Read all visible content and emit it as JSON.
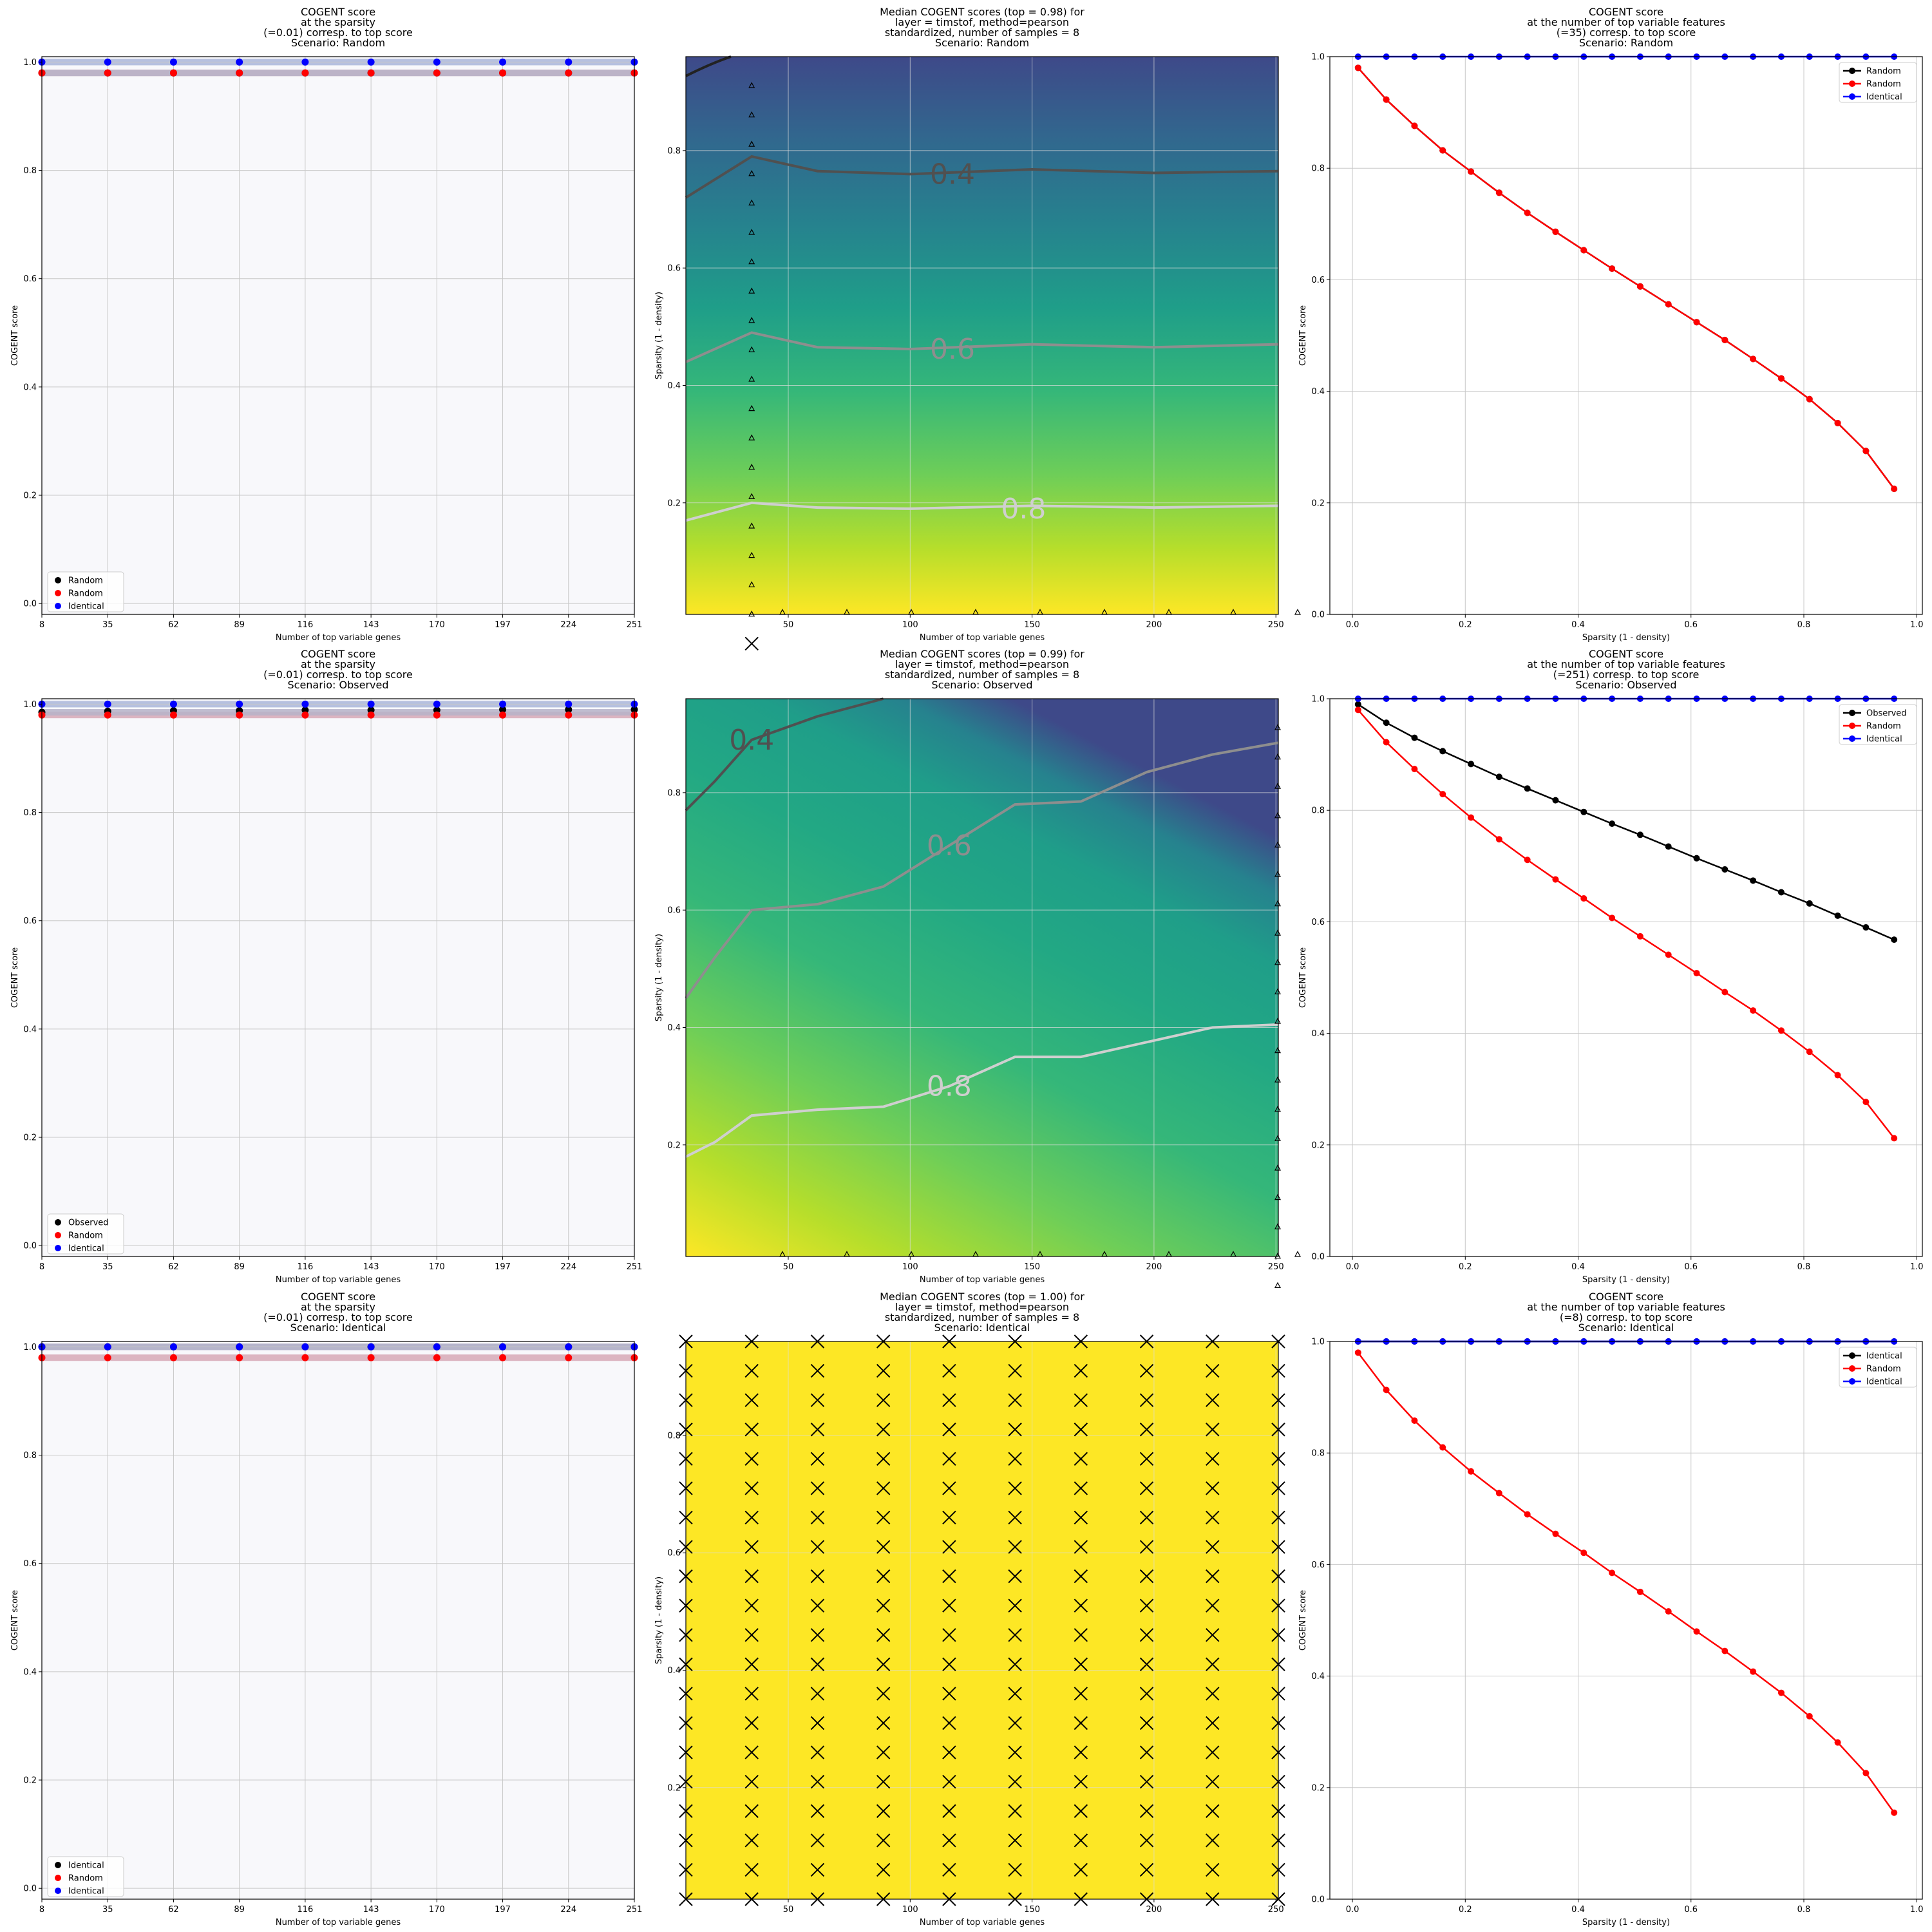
{
  "chart_data": [
    {
      "type": "scatter",
      "title": [
        "COGENT score",
        "at the sparsity",
        "(=0.01) corresp. to top score",
        "Scenario: Random"
      ],
      "xlabel": "Number of top variable genes",
      "ylabel": "COGENT score",
      "x": [
        8,
        35,
        62,
        89,
        116,
        143,
        170,
        197,
        224,
        251
      ],
      "xticks": [
        "8",
        "35",
        "62",
        "89",
        "116",
        "143",
        "170",
        "197",
        "224",
        "251"
      ],
      "yticks": [
        "0.0",
        "0.2",
        "0.4",
        "0.6",
        "0.8",
        "1.0"
      ],
      "ylim": [
        -0.02,
        1.01
      ],
      "grid": true,
      "legend_loc": "lower-left",
      "series": [
        {
          "name": "Random",
          "color": "#000000",
          "values": [
            0.98,
            0.98,
            0.98,
            0.98,
            0.98,
            0.98,
            0.98,
            0.98,
            0.98,
            0.98
          ]
        },
        {
          "name": "Random",
          "color": "#ff0000",
          "values": [
            0.98,
            0.98,
            0.98,
            0.98,
            0.98,
            0.98,
            0.98,
            0.98,
            0.98,
            0.98
          ]
        },
        {
          "name": "Identical",
          "color": "#0000ff",
          "values": [
            1.0,
            1.0,
            1.0,
            1.0,
            1.0,
            1.0,
            1.0,
            1.0,
            1.0,
            1.0
          ]
        }
      ]
    },
    {
      "type": "heatmap",
      "title": [
        "Median COGENT scores (top = 0.98) for",
        "layer = timstof, method=pearson",
        "standardized, number of samples = 8",
        "Scenario: Random"
      ],
      "xlabel": "Number of top variable genes",
      "ylabel": "Sparsity (1 - density)",
      "xlim": [
        8,
        251
      ],
      "ylim": [
        0.01,
        0.96
      ],
      "xticks": [
        "50",
        "100",
        "150",
        "200",
        "250"
      ],
      "yticks": [
        "0.2",
        "0.4",
        "0.6",
        "0.8"
      ],
      "colormap": "viridis",
      "grid": true,
      "contours": [
        {
          "level": "0.4",
          "color": "#505050",
          "points": [
            [
              8,
              0.72
            ],
            [
              35,
              0.79
            ],
            [
              62,
              0.765
            ],
            [
              100,
              0.76
            ],
            [
              150,
              0.768
            ],
            [
              200,
              0.762
            ],
            [
              251,
              0.765
            ]
          ]
        },
        {
          "level": "0.6",
          "color": "#8e8e8e",
          "points": [
            [
              8,
              0.44
            ],
            [
              35,
              0.49
            ],
            [
              62,
              0.465
            ],
            [
              100,
              0.462
            ],
            [
              150,
              0.47
            ],
            [
              200,
              0.465
            ],
            [
              251,
              0.47
            ]
          ]
        },
        {
          "level": "0.8",
          "color": "#cfcfcf",
          "points": [
            [
              8,
              0.17
            ],
            [
              35,
              0.2
            ],
            [
              62,
              0.192
            ],
            [
              100,
              0.19
            ],
            [
              150,
              0.195
            ],
            [
              200,
              0.192
            ],
            [
              251,
              0.195
            ]
          ]
        }
      ]
    },
    {
      "type": "line",
      "title": [
        "COGENT score",
        "at the number of top variable features",
        "(=35) corresp. to top score",
        "Scenario: Random"
      ],
      "xlabel": "Sparsity (1 - density)",
      "ylabel": "COGENT score",
      "x": [
        0.01,
        0.06,
        0.11,
        0.16,
        0.21,
        0.26,
        0.31,
        0.36,
        0.41,
        0.46,
        0.51,
        0.56,
        0.61,
        0.66,
        0.71,
        0.76,
        0.81,
        0.86,
        0.91,
        0.96
      ],
      "xticks": [
        "0.0",
        "0.2",
        "0.4",
        "0.6",
        "0.8",
        "1.0"
      ],
      "yticks": [
        "0.0",
        "0.2",
        "0.4",
        "0.6",
        "0.8",
        "1.0"
      ],
      "xlim": [
        -0.04,
        1.01
      ],
      "ylim": [
        0,
        1
      ],
      "grid": true,
      "legend_loc": "top-right",
      "series": [
        {
          "name": "Random",
          "color": "#000000",
          "values": [
            0.98,
            0.923,
            0.876,
            0.832,
            0.794,
            0.756,
            0.72,
            0.686,
            0.653,
            0.62,
            0.588,
            0.556,
            0.524,
            0.492,
            0.458,
            0.423,
            0.386,
            0.343,
            0.293,
            0.225
          ]
        },
        {
          "name": "Random",
          "color": "#ff0000",
          "values": [
            0.98,
            0.923,
            0.876,
            0.832,
            0.794,
            0.756,
            0.72,
            0.686,
            0.653,
            0.62,
            0.588,
            0.556,
            0.524,
            0.492,
            0.458,
            0.423,
            0.386,
            0.343,
            0.293,
            0.225
          ]
        },
        {
          "name": "Identical",
          "color": "#0000ff",
          "values": [
            1,
            1,
            1,
            1,
            1,
            1,
            1,
            1,
            1,
            1,
            1,
            1,
            1,
            1,
            1,
            1,
            1,
            1,
            1,
            1
          ]
        }
      ]
    },
    {
      "type": "scatter",
      "title": [
        "COGENT score",
        "at the sparsity",
        "(=0.01) corresp. to top score",
        "Scenario: Observed"
      ],
      "xlabel": "Number of top variable genes",
      "ylabel": "COGENT score",
      "x": [
        8,
        35,
        62,
        89,
        116,
        143,
        170,
        197,
        224,
        251
      ],
      "xticks": [
        "8",
        "35",
        "62",
        "89",
        "116",
        "143",
        "170",
        "197",
        "224",
        "251"
      ],
      "yticks": [
        "0.0",
        "0.2",
        "0.4",
        "0.6",
        "0.8",
        "1.0"
      ],
      "ylim": [
        -0.02,
        1.01
      ],
      "grid": true,
      "legend_loc": "lower-left",
      "series": [
        {
          "name": "Observed",
          "color": "#000000",
          "values": [
            0.985,
            0.987,
            0.988,
            0.988,
            0.989,
            0.989,
            0.989,
            0.99,
            0.99,
            0.99
          ]
        },
        {
          "name": "Random",
          "color": "#ff0000",
          "values": [
            0.98,
            0.98,
            0.98,
            0.98,
            0.98,
            0.98,
            0.98,
            0.98,
            0.98,
            0.98
          ]
        },
        {
          "name": "Identical",
          "color": "#0000ff",
          "values": [
            1.0,
            1.0,
            1.0,
            1.0,
            1.0,
            1.0,
            1.0,
            1.0,
            1.0,
            1.0
          ]
        }
      ]
    },
    {
      "type": "heatmap",
      "title": [
        "Median COGENT scores (top = 0.99) for",
        "layer = timstof, method=pearson",
        "standardized, number of samples = 8",
        "Scenario: Observed"
      ],
      "xlabel": "Number of top variable genes",
      "ylabel": "Sparsity (1 - density)",
      "xlim": [
        8,
        251
      ],
      "ylim": [
        0.01,
        0.96
      ],
      "xticks": [
        "50",
        "100",
        "150",
        "200",
        "250"
      ],
      "yticks": [
        "0.2",
        "0.4",
        "0.6",
        "0.8"
      ],
      "colormap": "viridis",
      "grid": true,
      "contours": [
        {
          "level": "0.4",
          "color": "#505050",
          "points": [
            [
              8,
              0.77
            ],
            [
              20,
              0.82
            ],
            [
              35,
              0.89
            ],
            [
              62,
              0.93
            ],
            [
              89,
              0.96
            ]
          ]
        },
        {
          "level": "0.6",
          "color": "#8e8e8e",
          "points": [
            [
              8,
              0.45
            ],
            [
              20,
              0.52
            ],
            [
              35,
              0.6
            ],
            [
              62,
              0.61
            ],
            [
              89,
              0.64
            ],
            [
              116,
              0.71
            ],
            [
              143,
              0.78
            ],
            [
              170,
              0.785
            ],
            [
              197,
              0.835
            ],
            [
              224,
              0.865
            ],
            [
              251,
              0.885
            ]
          ]
        },
        {
          "level": "0.8",
          "color": "#cfcfcf",
          "points": [
            [
              8,
              0.18
            ],
            [
              20,
              0.205
            ],
            [
              35,
              0.25
            ],
            [
              62,
              0.26
            ],
            [
              89,
              0.265
            ],
            [
              116,
              0.3
            ],
            [
              143,
              0.35
            ],
            [
              170,
              0.35
            ],
            [
              197,
              0.375
            ],
            [
              224,
              0.4
            ],
            [
              251,
              0.405
            ]
          ]
        }
      ]
    },
    {
      "type": "line",
      "title": [
        "COGENT score",
        "at the number of top variable features",
        "(=251) corresp. to top score",
        "Scenario: Observed"
      ],
      "xlabel": "Sparsity (1 - density)",
      "ylabel": "COGENT score",
      "x": [
        0.01,
        0.06,
        0.11,
        0.16,
        0.21,
        0.26,
        0.31,
        0.36,
        0.41,
        0.46,
        0.51,
        0.56,
        0.61,
        0.66,
        0.71,
        0.76,
        0.81,
        0.86,
        0.91,
        0.96
      ],
      "xticks": [
        "0.0",
        "0.2",
        "0.4",
        "0.6",
        "0.8",
        "1.0"
      ],
      "yticks": [
        "0.0",
        "0.2",
        "0.4",
        "0.6",
        "0.8",
        "1.0"
      ],
      "xlim": [
        -0.04,
        1.01
      ],
      "ylim": [
        0,
        1
      ],
      "grid": true,
      "legend_loc": "top-right",
      "series": [
        {
          "name": "Observed",
          "color": "#000000",
          "values": [
            0.99,
            0.957,
            0.93,
            0.906,
            0.883,
            0.86,
            0.839,
            0.818,
            0.797,
            0.776,
            0.756,
            0.735,
            0.714,
            0.694,
            0.674,
            0.653,
            0.633,
            0.611,
            0.59,
            0.568
          ]
        },
        {
          "name": "Random",
          "color": "#ff0000",
          "values": [
            0.98,
            0.922,
            0.874,
            0.829,
            0.787,
            0.748,
            0.711,
            0.676,
            0.642,
            0.607,
            0.574,
            0.541,
            0.508,
            0.474,
            0.441,
            0.405,
            0.367,
            0.325,
            0.277,
            0.212
          ]
        },
        {
          "name": "Identical",
          "color": "#0000ff",
          "values": [
            1,
            1,
            1,
            1,
            1,
            1,
            1,
            1,
            1,
            1,
            1,
            1,
            1,
            1,
            1,
            1,
            1,
            1,
            1,
            1
          ]
        }
      ]
    },
    {
      "type": "scatter",
      "title": [
        "COGENT score",
        "at the sparsity",
        "(=0.01) corresp. to top score",
        "Scenario: Identical"
      ],
      "xlabel": "Number of top variable genes",
      "ylabel": "COGENT score",
      "x": [
        8,
        35,
        62,
        89,
        116,
        143,
        170,
        197,
        224,
        251
      ],
      "xticks": [
        "8",
        "35",
        "62",
        "89",
        "116",
        "143",
        "170",
        "197",
        "224",
        "251"
      ],
      "yticks": [
        "0.0",
        "0.2",
        "0.4",
        "0.6",
        "0.8",
        "1.0"
      ],
      "ylim": [
        -0.02,
        1.01
      ],
      "grid": true,
      "legend_loc": "lower-left",
      "series": [
        {
          "name": "Identical",
          "color": "#000000",
          "values": [
            1.0,
            1.0,
            1.0,
            1.0,
            1.0,
            1.0,
            1.0,
            1.0,
            1.0,
            1.0
          ]
        },
        {
          "name": "Random",
          "color": "#ff0000",
          "values": [
            0.98,
            0.98,
            0.98,
            0.98,
            0.98,
            0.98,
            0.98,
            0.98,
            0.98,
            0.98
          ]
        },
        {
          "name": "Identical",
          "color": "#0000ff",
          "values": [
            1.0,
            1.0,
            1.0,
            1.0,
            1.0,
            1.0,
            1.0,
            1.0,
            1.0,
            1.0
          ]
        }
      ]
    },
    {
      "type": "heatmap",
      "title": [
        "Median COGENT scores (top = 1.00) for",
        "layer = timstof, method=pearson",
        "standardized, number of samples = 8",
        "Scenario: Identical"
      ],
      "xlabel": "Number of top variable genes",
      "ylabel": "Sparsity (1 - density)",
      "xlim": [
        8,
        251
      ],
      "ylim": [
        0.01,
        0.96
      ],
      "xticks": [
        "50",
        "100",
        "150",
        "200",
        "250"
      ],
      "yticks": [
        "0.2",
        "0.4",
        "0.6",
        "0.8"
      ],
      "colormap": "solid",
      "fill": "#fde725",
      "grid": true,
      "contours": []
    },
    {
      "type": "line",
      "title": [
        "COGENT score",
        "at the number of top variable features",
        "(=8) corresp. to top score",
        "Scenario: Identical"
      ],
      "xlabel": "Sparsity (1 - density)",
      "ylabel": "COGENT score",
      "x": [
        0.01,
        0.06,
        0.11,
        0.16,
        0.21,
        0.26,
        0.31,
        0.36,
        0.41,
        0.46,
        0.51,
        0.56,
        0.61,
        0.66,
        0.71,
        0.76,
        0.81,
        0.86,
        0.91,
        0.96
      ],
      "xticks": [
        "0.0",
        "0.2",
        "0.4",
        "0.6",
        "0.8",
        "1.0"
      ],
      "yticks": [
        "0.0",
        "0.2",
        "0.4",
        "0.6",
        "0.8",
        "1.0"
      ],
      "xlim": [
        -0.04,
        1.01
      ],
      "ylim": [
        0,
        1
      ],
      "grid": true,
      "legend_loc": "top-right",
      "series": [
        {
          "name": "Identical",
          "color": "#000000",
          "values": [
            1,
            1,
            1,
            1,
            1,
            1,
            1,
            1,
            1,
            1,
            1,
            1,
            1,
            1,
            1,
            1,
            1,
            1,
            1,
            1
          ]
        },
        {
          "name": "Random",
          "color": "#ff0000",
          "values": [
            0.98,
            0.913,
            0.858,
            0.81,
            0.767,
            0.728,
            0.69,
            0.655,
            0.621,
            0.585,
            0.551,
            0.516,
            0.48,
            0.445,
            0.408,
            0.37,
            0.328,
            0.281,
            0.226,
            0.155
          ]
        },
        {
          "name": "Identical",
          "color": "#0000ff",
          "values": [
            1,
            1,
            1,
            1,
            1,
            1,
            1,
            1,
            1,
            1,
            1,
            1,
            1,
            1,
            1,
            1,
            1,
            1,
            1,
            1
          ]
        }
      ]
    }
  ]
}
